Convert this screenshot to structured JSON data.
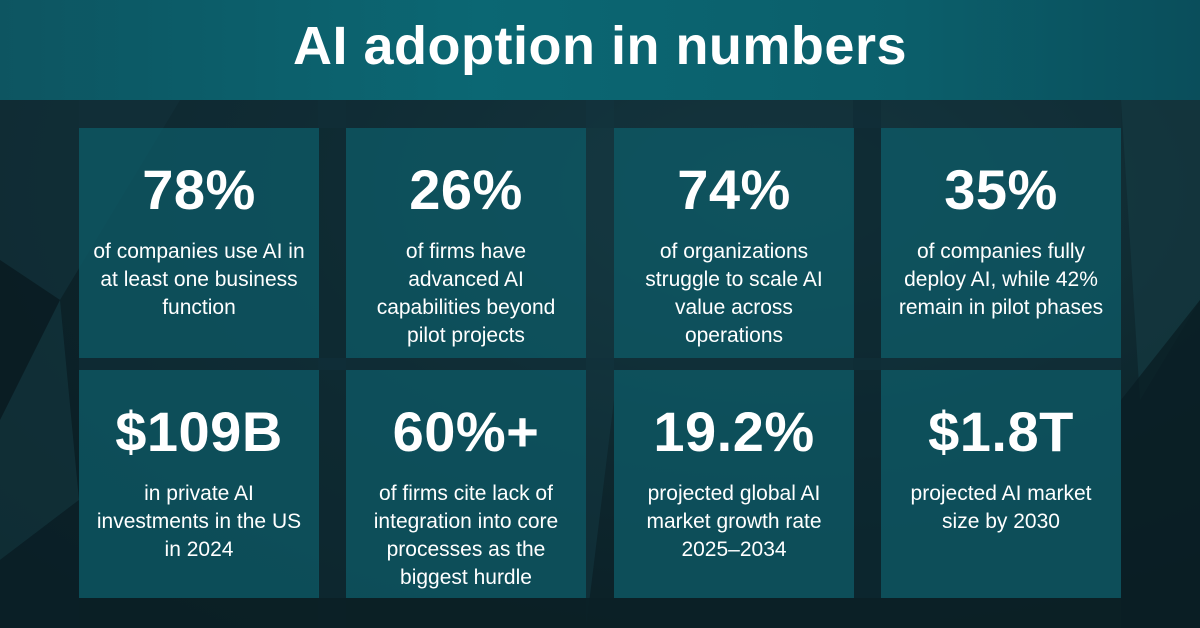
{
  "title": "AI adoption in numbers",
  "colors": {
    "header": "#0b6773",
    "card": "#0d5864",
    "background": "#0c2027",
    "text": "#ffffff"
  },
  "stats": [
    {
      "value": "78%",
      "description": "of companies use AI in at least one business function"
    },
    {
      "value": "26%",
      "description": "of firms have advanced AI capabilities beyond pilot projects"
    },
    {
      "value": "74%",
      "description": "of organizations struggle to scale AI value across operations"
    },
    {
      "value": "35%",
      "description": "of companies fully deploy AI, while 42% remain in pilot phases"
    },
    {
      "value": "$109B",
      "description": "in private AI investments in the US in 2024"
    },
    {
      "value": "60%+",
      "description": "of firms cite lack of integration into core processes as the biggest hurdle"
    },
    {
      "value": "19.2%",
      "description": "projected global AI market growth rate 2025–2034"
    },
    {
      "value": "$1.8T",
      "description": "projected AI market size by 2030"
    }
  ]
}
